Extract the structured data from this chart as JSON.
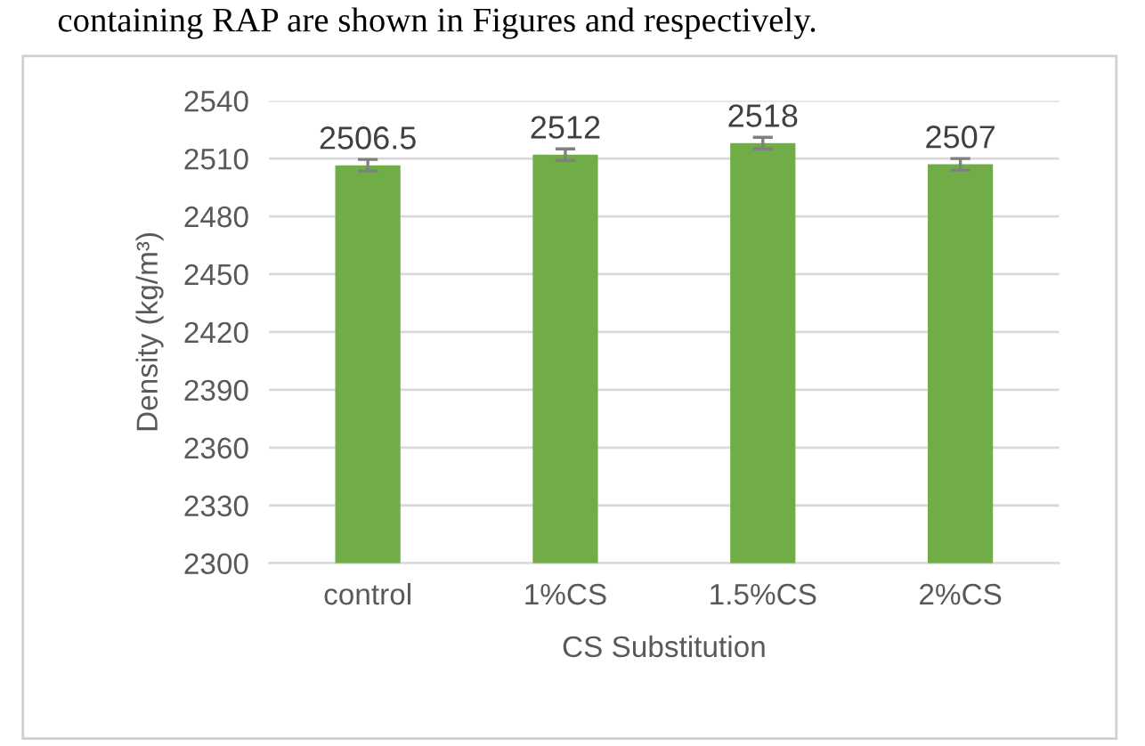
{
  "chart_data": {
    "type": "bar",
    "categories": [
      "control",
      "1%CS",
      "1.5%CS",
      "2%CS"
    ],
    "values": [
      2506.5,
      2512,
      2518,
      2507
    ],
    "errors": [
      3,
      3,
      3,
      3
    ],
    "color": "#70ad47",
    "data_labels": true,
    "xlabel": "CS Substitution",
    "ylabel": "Density (kg/m³)",
    "ylim": [
      2300,
      2540
    ],
    "yticks": [
      2300,
      2330,
      2360,
      2390,
      2420,
      2450,
      2480,
      2510,
      2540
    ],
    "grid": "y",
    "annotations": [
      "containing RAP are shown in Figures and respectively."
    ]
  }
}
